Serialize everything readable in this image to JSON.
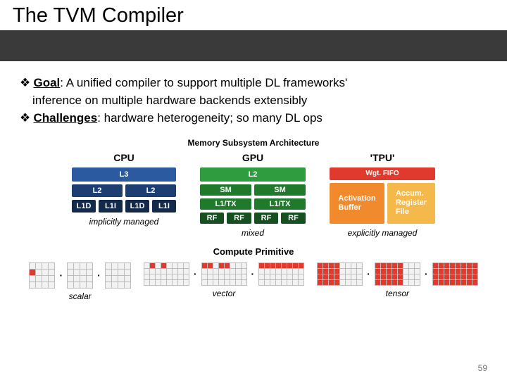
{
  "title": "The TVM Compiler",
  "bullets": {
    "goal_label": "Goal",
    "goal_text": ": A unified compiler to support multiple DL frameworks'",
    "goal_line2": "inference on multiple hardware backends extensibly",
    "ch_label": "Challenges",
    "ch_text": ": hardware heterogeneity; so many DL ops"
  },
  "memory": {
    "title": "Memory Subsystem Architecture",
    "columns": [
      {
        "label": "CPU",
        "caption": "implicitly managed",
        "color_scheme": {
          "main": "#2b5aa0",
          "dark": "#1d3e70",
          "darker": "#142a4c"
        },
        "layout": "cpu"
      },
      {
        "label": "GPU",
        "caption": "mixed",
        "color_scheme": {
          "main": "#2e9c3f",
          "dark": "#1f7a2c",
          "darker": "#145020"
        },
        "layout": "gpu"
      },
      {
        "label": "'TPU'",
        "caption": "explicitly managed",
        "color_scheme": {
          "wgt": "#e03a2f",
          "act": "#f08a2c",
          "acc": "#f5b84a"
        },
        "layout": "tpu"
      }
    ],
    "labels": {
      "L3": "L3",
      "L2": "L2",
      "L1D": "L1D",
      "L1I": "L1I",
      "SM": "SM",
      "L1TX": "L1/TX",
      "RF": "RF",
      "WGT": "Wgt. FIFO",
      "ACT": "Activation Buffer",
      "ACC1": "Accum.",
      "ACC2": "Register",
      "ACC3": "File"
    }
  },
  "compute": {
    "title": "Compute Primitive",
    "items": [
      {
        "caption": "scalar",
        "grids": 3,
        "rows": 4,
        "cols": 4,
        "size": 8,
        "pattern": "scalar"
      },
      {
        "caption": "vector",
        "grids": 3,
        "rows": 4,
        "cols": 8,
        "size": 7,
        "pattern": "vector"
      },
      {
        "caption": "tensor",
        "grids": 3,
        "rows": 4,
        "cols": 8,
        "size": 7,
        "pattern": "tensor"
      }
    ]
  },
  "page_number": "59",
  "styling": {
    "band_color": "#3a3a3a",
    "cell_on": "#e03a2f",
    "cell_off": "#f2f2f2",
    "cell_border": "#bbbbbb"
  }
}
